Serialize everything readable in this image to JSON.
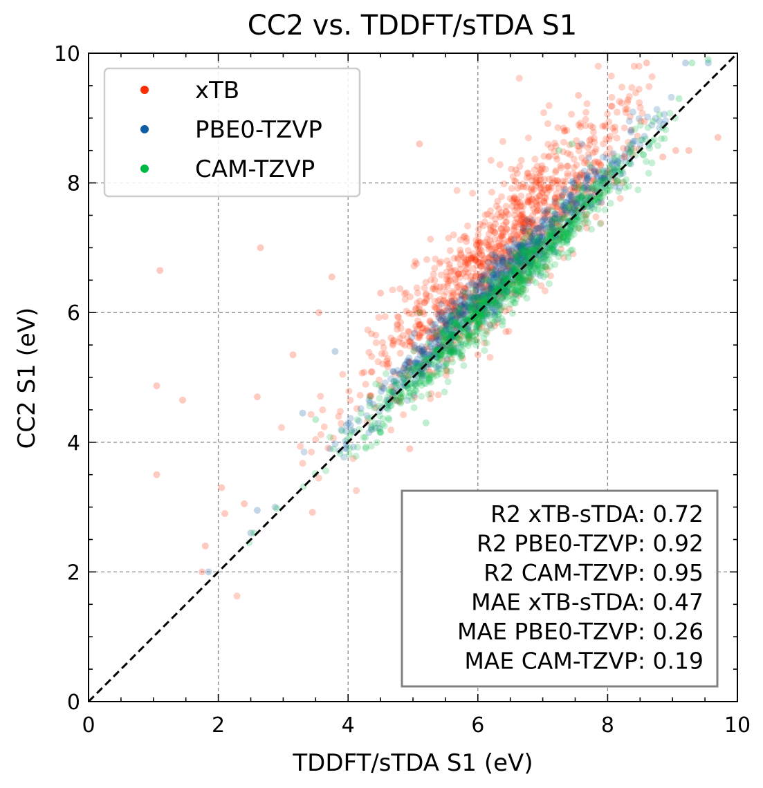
{
  "chart_data": {
    "type": "scatter",
    "title": "CC2 vs. TDDFT/sTDA S1",
    "xlabel": "TDDFT/sTDA S1 (eV)",
    "ylabel": "CC2 S1 (eV)",
    "xlim": [
      0,
      10
    ],
    "ylim": [
      0,
      10
    ],
    "xticks": [
      "0",
      "2",
      "4",
      "6",
      "8",
      "10"
    ],
    "yticks": [
      "0",
      "2",
      "4",
      "6",
      "8",
      "10"
    ],
    "grid": true,
    "legend_position": "top-left",
    "reference_line": "y = x (black dashed)",
    "series": [
      {
        "name": "xTB",
        "color": "#ff2c00",
        "fit": {
          "slope": 1.0,
          "intercept": 0.6,
          "spread": 0.45
        },
        "points": [
          [
            1.1,
            6.65
          ],
          [
            1.05,
            4.87
          ],
          [
            1.45,
            4.65
          ],
          [
            1.05,
            3.5
          ],
          [
            2.65,
            7.0
          ],
          [
            5.1,
            8.6
          ],
          [
            7.55,
            9.35
          ],
          [
            8.6,
            9.85
          ],
          [
            9.7,
            8.7
          ],
          [
            9.05,
            8.5
          ],
          [
            9.25,
            8.5
          ],
          [
            8.85,
            8.4
          ],
          [
            2.1,
            2.9
          ],
          [
            2.4,
            3.05
          ],
          [
            2.6,
            4.7
          ],
          [
            3.15,
            5.35
          ],
          [
            3.55,
            6.0
          ],
          [
            3.75,
            6.55
          ],
          [
            1.75,
            2.0
          ],
          [
            1.8,
            2.4
          ],
          [
            2.05,
            3.3
          ],
          [
            3.45,
            2.92
          ],
          [
            4.95,
            3.9
          ],
          [
            6.0,
            5.35
          ],
          [
            5.1,
            5.8
          ],
          [
            4.5,
            6.3
          ],
          [
            7.15,
            8.0
          ],
          [
            6.85,
            8.1
          ]
        ],
        "cloud": {
          "count": 1150,
          "x_range": [
            2.0,
            8.7
          ]
        }
      },
      {
        "name": "PBE0-TZVP",
        "color": "#0c5da5",
        "fit": {
          "slope": 1.0,
          "intercept": 0.15,
          "spread": 0.2
        },
        "points": [
          [
            9.2,
            9.85
          ],
          [
            9.55,
            9.85
          ],
          [
            8.8,
            8.95
          ],
          [
            6.7,
            7.3
          ],
          [
            7.35,
            7.9
          ],
          [
            3.3,
            4.45
          ],
          [
            3.8,
            5.4
          ],
          [
            1.85,
            2.0
          ],
          [
            2.5,
            2.6
          ],
          [
            2.6,
            2.95
          ],
          [
            7.6,
            8.6
          ]
        ],
        "cloud": {
          "count": 850,
          "x_range": [
            2.4,
            9.0
          ]
        }
      },
      {
        "name": "CAM-TZVP",
        "color": "#00b945",
        "fit": {
          "slope": 1.0,
          "intercept": -0.05,
          "spread": 0.2
        },
        "points": [
          [
            9.55,
            9.9
          ],
          [
            9.3,
            9.85
          ],
          [
            9.1,
            9.3
          ],
          [
            8.8,
            9.05
          ],
          [
            8.7,
            8.95
          ],
          [
            7.45,
            8.6
          ],
          [
            7.25,
            8.5
          ],
          [
            5.1,
            6.0
          ],
          [
            3.5,
            4.35
          ],
          [
            4.2,
            4.45
          ],
          [
            5.2,
            4.3
          ],
          [
            2.9,
            2.98
          ],
          [
            2.55,
            2.6
          ]
        ],
        "cloud": {
          "count": 900,
          "x_range": [
            2.4,
            9.1
          ]
        }
      }
    ],
    "stats_box": [
      "R2 xTB-sTDA: 0.72",
      "R2 PBE0-TZVP: 0.92",
      "R2 CAM-TZVP: 0.95",
      "MAE xTB-sTDA: 0.47",
      "MAE PBE0-TZVP: 0.26",
      "MAE CAM-TZVP: 0.19"
    ]
  }
}
